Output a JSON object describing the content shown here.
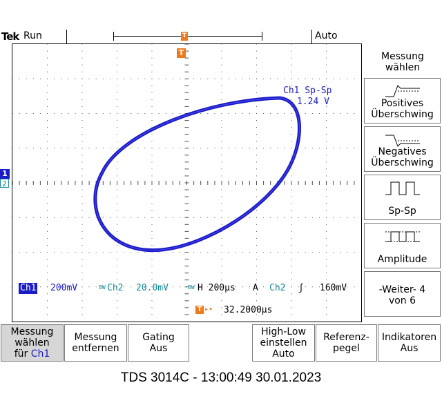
{
  "status": {
    "brand": "Tek",
    "run_state": "Run",
    "trigger_mode": "Auto"
  },
  "markers": {
    "ch1": "1",
    "ch2": "2",
    "trigger": "T"
  },
  "measurement": {
    "label": "Ch1 Sp-Sp",
    "value": "1.24 V"
  },
  "readouts": {
    "ch1_label": "Ch1",
    "ch1_scale": "200mV",
    "ch2_label": "Ch2",
    "ch2_bw": "BW",
    "ch2_scale": "20.0mV",
    "h_bw": "BW",
    "horizontal": "H 200µs",
    "trigger_type": "A",
    "trigger_source": "Ch2",
    "trigger_slope": "ʃ",
    "trigger_level": "160mV",
    "trigger_position": "32.2000µs"
  },
  "side_menu": {
    "title": "Messung wählen",
    "items": [
      {
        "label": "Positives Überschwing",
        "icon": "positive-overshoot-icon"
      },
      {
        "label": "Negatives Überschwing",
        "icon": "negative-overshoot-icon"
      },
      {
        "label": "Sp-Sp",
        "icon": "peak-to-peak-icon"
      },
      {
        "label": "Amplitude",
        "icon": "amplitude-icon"
      },
      {
        "label": "-Weiter- 4 von 6"
      }
    ]
  },
  "bottom_menu": [
    {
      "label_1": "Messung wählen",
      "label_2": "für",
      "label_3": "Ch1"
    },
    {
      "label": "Messung entfernen"
    },
    {
      "label": "Gating Aus"
    },
    {
      "label": "High-Low einstellen Auto"
    },
    {
      "label": "Referenz- pegel"
    },
    {
      "label": "Indikatoren Aus"
    }
  ],
  "caption": "TDS 3014C - 13:00:49   30.01.2023",
  "colors": {
    "ch1": "#1b1bc8",
    "ch2": "#178a99",
    "trigger": "#f07a1a"
  }
}
